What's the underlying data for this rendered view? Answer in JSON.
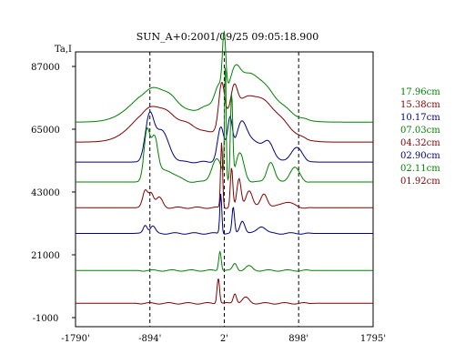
{
  "chart_data": {
    "type": "line",
    "title": "SUN_A+0:2001/09/25 09:05:18.900",
    "ylabel": "Ta,I",
    "xlabel": "",
    "xlim": [
      -1790,
      1795
    ],
    "ylim": [
      -1000,
      87000
    ],
    "xticks": [
      {
        "value": -1790,
        "label": "-1790'"
      },
      {
        "value": -894,
        "label": "-894'"
      },
      {
        "value": 2,
        "label": "2'"
      },
      {
        "value": 898,
        "label": "898'"
      },
      {
        "value": 1795,
        "label": "1795'"
      }
    ],
    "yticks": [
      {
        "value": -1000,
        "label": "-1000"
      },
      {
        "value": 21000,
        "label": "21000"
      },
      {
        "value": 43000,
        "label": "43000"
      },
      {
        "value": 65000,
        "label": "65000"
      },
      {
        "value": 87000,
        "label": "87000"
      }
    ],
    "vlines": [
      -894,
      2,
      898
    ],
    "grid": false,
    "legend_position": "right",
    "series": [
      {
        "name": "17.96cm",
        "color": "#008000",
        "baseline": 67500,
        "peaks": [
          [
            -820,
            12000,
            260
          ],
          [
            -230,
            4000,
            90
          ],
          [
            -60,
            9000,
            55
          ],
          [
            0,
            20000,
            20
          ],
          [
            130,
            8000,
            60
          ],
          [
            270,
            14000,
            200
          ],
          [
            560,
            6000,
            220
          ]
        ]
      },
      {
        "name": "15.38cm",
        "color": "#800000",
        "baseline": 60500,
        "peaks": [
          [
            -830,
            12500,
            240
          ],
          [
            -380,
            3500,
            150
          ],
          [
            -30,
            15000,
            35
          ],
          [
            120,
            9000,
            40
          ],
          [
            270,
            14000,
            220
          ],
          [
            600,
            7000,
            200
          ]
        ]
      },
      {
        "name": "10.17cm",
        "color": "#000080",
        "baseline": 53500,
        "peaks": [
          [
            -900,
            14000,
            50
          ],
          [
            -760,
            11000,
            90
          ],
          [
            -40,
            12000,
            40
          ],
          [
            70,
            14000,
            30
          ],
          [
            200,
            9000,
            60
          ],
          [
            320,
            8000,
            120
          ],
          [
            540,
            6000,
            60
          ],
          [
            870,
            5000,
            70
          ]
        ]
      },
      {
        "name": "07.03cm",
        "color": "#008000",
        "baseline": 46500,
        "peaks": [
          [
            -930,
            17000,
            35
          ],
          [
            -840,
            14000,
            40
          ],
          [
            -700,
            4000,
            120
          ],
          [
            -90,
            8000,
            60
          ],
          [
            15,
            42000,
            9
          ],
          [
            90,
            30000,
            14
          ],
          [
            190,
            10000,
            50
          ],
          [
            560,
            7000,
            45
          ],
          [
            850,
            5000,
            60
          ]
        ]
      },
      {
        "name": "04.32cm",
        "color": "#800000",
        "baseline": 37500,
        "peaks": [
          [
            -950,
            6000,
            30
          ],
          [
            -880,
            5000,
            30
          ],
          [
            -780,
            3500,
            40
          ],
          [
            -30,
            23000,
            12
          ],
          [
            90,
            14000,
            15
          ],
          [
            180,
            10000,
            25
          ],
          [
            300,
            6000,
            40
          ],
          [
            480,
            5000,
            40
          ],
          [
            750,
            2000,
            80
          ]
        ]
      },
      {
        "name": "02.90cm",
        "color": "#000080",
        "baseline": 28500,
        "peaks": [
          [
            -950,
            3000,
            25
          ],
          [
            -860,
            2500,
            30
          ],
          [
            -40,
            14000,
            12
          ],
          [
            110,
            9000,
            15
          ],
          [
            220,
            4500,
            30
          ],
          [
            450,
            2500,
            50
          ]
        ]
      },
      {
        "name": "02.11cm",
        "color": "#008000",
        "baseline": 15500,
        "peaks": [
          [
            -50,
            7000,
            15
          ],
          [
            130,
            2500,
            25
          ],
          [
            300,
            1500,
            40
          ]
        ]
      },
      {
        "name": "01.92cm",
        "color": "#800000",
        "baseline": 4000,
        "peaks": [
          [
            -70,
            9000,
            15
          ],
          [
            130,
            3500,
            20
          ],
          [
            260,
            2000,
            40
          ]
        ]
      }
    ]
  }
}
